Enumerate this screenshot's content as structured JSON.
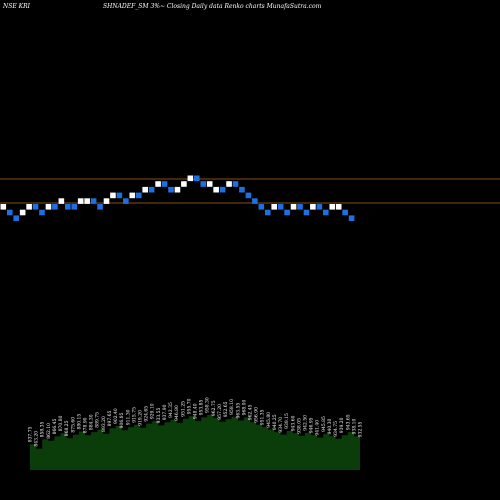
{
  "header": {
    "exchange": "NSE KRI",
    "description": "SHNADEF_SM 3%~  Closing Daily data  Renko  charts MunafaSutra.com"
  },
  "colors": {
    "background": "#000000",
    "brick_up": "#ffffff",
    "brick_down": "#1e6fe0",
    "reference_line": "#b5651d",
    "volume_fill": "#0a3d0a",
    "text": "#ffffff"
  },
  "chart_data": {
    "type": "renko",
    "brick_levels": [
      0,
      -1,
      -2,
      -1,
      0,
      0,
      -1,
      0,
      0,
      1,
      0,
      0,
      1,
      1,
      1,
      0,
      1,
      2,
      2,
      1,
      2,
      2,
      3,
      3,
      4,
      4,
      3,
      3,
      4,
      5,
      5,
      4,
      4,
      3,
      3,
      4,
      4,
      3,
      2,
      1,
      0,
      -1,
      0,
      0,
      -1,
      0,
      0,
      -1,
      0,
      0,
      -1,
      0,
      0,
      -1,
      -2
    ],
    "brick_directions": [
      "up",
      "down",
      "down",
      "up",
      "up",
      "down",
      "down",
      "up",
      "down",
      "up",
      "down",
      "down",
      "up",
      "up",
      "down",
      "down",
      "up",
      "up",
      "down",
      "down",
      "up",
      "down",
      "up",
      "down",
      "up",
      "down",
      "down",
      "up",
      "up",
      "up",
      "down",
      "down",
      "up",
      "up",
      "down",
      "up",
      "down",
      "down",
      "down",
      "down",
      "down",
      "down",
      "up",
      "down",
      "down",
      "up",
      "down",
      "down",
      "up",
      "down",
      "down",
      "up",
      "up",
      "down",
      "down"
    ],
    "reference_lines": [
      "upper",
      "lower"
    ],
    "volume_labels": [
      "837.75",
      "843.20",
      "858.35",
      "862.10",
      "866.45",
      "870.80",
      "868.25",
      "875.60",
      "880.15",
      "878.90",
      "884.30",
      "889.75",
      "893.20",
      "897.65",
      "902.40",
      "906.85",
      "911.30",
      "915.75",
      "919.20",
      "924.65",
      "929.10",
      "933.55",
      "937.90",
      "942.35",
      "946.80",
      "951.25",
      "955.70",
      "948.40",
      "953.85",
      "958.30",
      "962.75",
      "957.20",
      "952.65",
      "958.10",
      "963.55",
      "968.00",
      "962.45",
      "956.90",
      "951.35",
      "945.80",
      "940.25",
      "934.70",
      "939.15",
      "943.60",
      "938.05",
      "942.50",
      "946.95",
      "941.40",
      "945.85",
      "940.30",
      "934.75",
      "939.20",
      "943.65",
      "938.10",
      "932.55"
    ],
    "volume_values": [
      42,
      35,
      50,
      48,
      55,
      60,
      52,
      58,
      63,
      57,
      62,
      66,
      59,
      68,
      72,
      65,
      70,
      74,
      69,
      76,
      80,
      73,
      78,
      82,
      77,
      84,
      88,
      80,
      86,
      90,
      85,
      79,
      83,
      87,
      81,
      86,
      78,
      74,
      70,
      66,
      62,
      58,
      64,
      60,
      56,
      61,
      57,
      53,
      59,
      55,
      51,
      57,
      62,
      55,
      50
    ]
  }
}
